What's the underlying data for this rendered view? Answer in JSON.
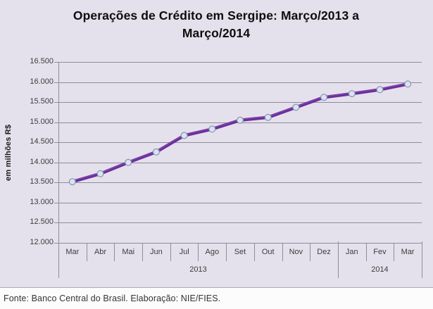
{
  "chart_data": {
    "type": "line",
    "title": "Operações de Crédito em Sergipe: Março/2013 a Março/2014",
    "ylabel": "em milhões R$",
    "xlabel": "",
    "categories": [
      "Mar",
      "Abr",
      "Mai",
      "Jun",
      "Jul",
      "Ago",
      "Set",
      "Out",
      "Nov",
      "Dez",
      "Jan",
      "Fev",
      "Mar"
    ],
    "year_groups": [
      {
        "label": "2013",
        "months": 10
      },
      {
        "label": "2014",
        "months": 3
      }
    ],
    "values": [
      13520,
      13720,
      14000,
      14260,
      14670,
      14830,
      15050,
      15120,
      15370,
      15620,
      15710,
      15810,
      15950
    ],
    "ylim": [
      12000,
      16500
    ],
    "ytick_step": 500,
    "ytick_labels": [
      "16.500",
      "16.000",
      "15.500",
      "15.000",
      "14.500",
      "14.000",
      "13.500",
      "13.000",
      "12.500",
      "12.000"
    ],
    "grid": true,
    "legend_position": "none",
    "colors": {
      "line": "#6C2E9C",
      "line_highlight": "#9468BD",
      "marker_fill": "#DBE2F0",
      "marker_stroke": "#8694B2",
      "plot_background": "#E4E1EC",
      "gridline": "#8F8D99"
    }
  },
  "footer": {
    "source": "Fonte: Banco Central do Brasil. Elaboração: NIE/FIES."
  }
}
